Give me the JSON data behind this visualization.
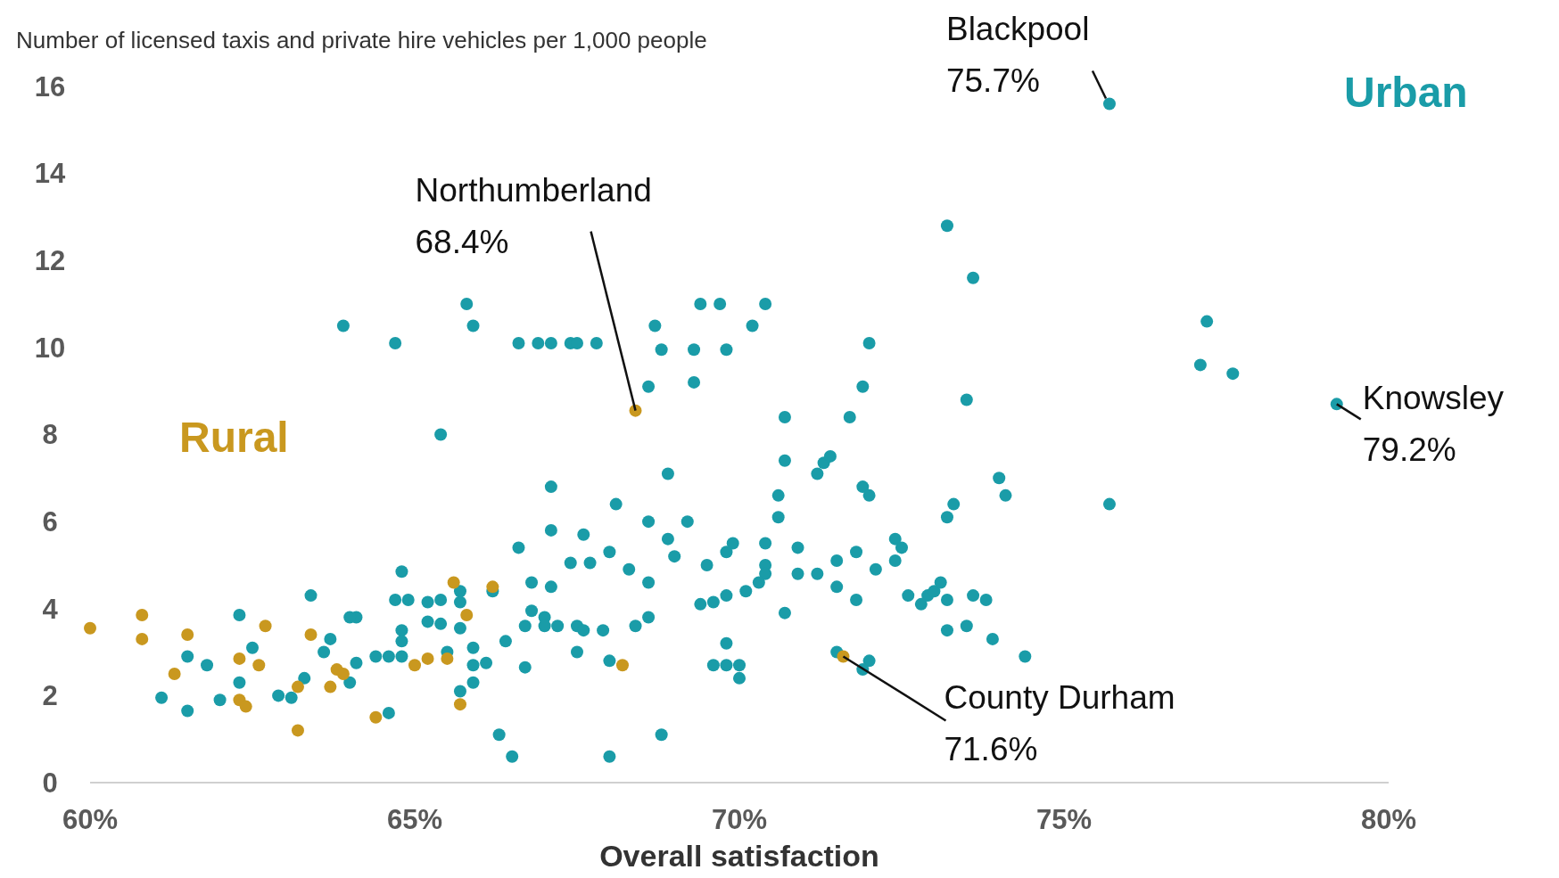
{
  "chart_data": {
    "type": "scatter",
    "ylabel": "Number of licensed taxis and private hire vehicles per 1,000 people",
    "xlabel": "Overall satisfaction",
    "xlim": [
      60,
      80
    ],
    "xticks": [
      {
        "value": 60,
        "label": "60%"
      },
      {
        "value": 65,
        "label": "65%"
      },
      {
        "value": 70,
        "label": "70%"
      },
      {
        "value": 75,
        "label": "75%"
      },
      {
        "value": 80,
        "label": "80%"
      }
    ],
    "ylim": [
      0,
      16
    ],
    "yticks": [
      0,
      2,
      4,
      6,
      8,
      10,
      12,
      14,
      16
    ],
    "grid": false,
    "legend": false,
    "marker": "circle",
    "series": [
      {
        "name": "Urban",
        "color": "#1a9ca8",
        "x": [
          75.7,
          73.2,
          73.6,
          77.2,
          77.1,
          77.6,
          79.2,
          73.5,
          75.7,
          63.9,
          64.7,
          65.8,
          65.9,
          66.6,
          66.9,
          67.1,
          67.4,
          67.5,
          67.8,
          68.8,
          68.7,
          68.6,
          69.3,
          69.4,
          69.7,
          69.8,
          69.3,
          70.2,
          70.4,
          72.0,
          71.9,
          71.7,
          70.7,
          70.7,
          71.2,
          71.3,
          71.4,
          71.9,
          72.0,
          70.6,
          70.6,
          65.4,
          67.1,
          68.9,
          74.0,
          74.1,
          73.2,
          73.3,
          68.1,
          68.6,
          69.2,
          68.9,
          69.0,
          69.5,
          69.9,
          69.8,
          70.4,
          70.4,
          70.4,
          70.3,
          70.9,
          70.9,
          71.2,
          71.5,
          71.8,
          72.1,
          72.4,
          72.5,
          72.4,
          71.5,
          71.8,
          72.6,
          72.9,
          73.0,
          73.1,
          72.8,
          73.2,
          73.6,
          73.8,
          73.2,
          73.5,
          73.9,
          74.4,
          71.5,
          72.0,
          71.9,
          70.7,
          69.6,
          69.4,
          69.8,
          70.1,
          69.8,
          69.6,
          69.8,
          70.0,
          70.0,
          68.8,
          68.0,
          66.3,
          66.5,
          66.6,
          66.8,
          67.1,
          67.1,
          67.6,
          67.4,
          67.7,
          68.0,
          68.3,
          68.6,
          66.8,
          67.0,
          66.7,
          67.0,
          67.2,
          67.5,
          67.6,
          67.9,
          67.5,
          68.0,
          68.4,
          68.6,
          66.7,
          66.4,
          66.1,
          65.2,
          65.4,
          65.7,
          65.7,
          66.2,
          65.4,
          65.7,
          65.2,
          65.9,
          65.5,
          64.8,
          64.7,
          64.9,
          64.8,
          64.8,
          64.8,
          64.6,
          64.4,
          64.1,
          64.0,
          65.9,
          65.9,
          65.7,
          64.6,
          64.1,
          64.0,
          63.4,
          63.7,
          63.6,
          63.1,
          63.3,
          62.9,
          62.5,
          62.3,
          62.3,
          62.0,
          61.8,
          61.5,
          61.5,
          61.1
        ],
        "values": [
          15.6,
          12.8,
          11.6,
          10.6,
          9.6,
          9.4,
          8.7,
          8.8,
          6.4,
          10.5,
          10.1,
          11.0,
          10.5,
          10.1,
          10.1,
          10.1,
          10.1,
          10.1,
          10.1,
          9.95,
          10.5,
          9.1,
          9.95,
          11.0,
          11.0,
          9.95,
          9.2,
          10.5,
          11.0,
          10.1,
          9.1,
          8.4,
          8.4,
          7.4,
          7.1,
          7.35,
          7.5,
          6.8,
          6.6,
          6.6,
          6.1,
          8.0,
          6.8,
          7.1,
          7.0,
          6.6,
          6.1,
          6.4,
          6.4,
          6.0,
          6.0,
          5.6,
          5.2,
          5.0,
          5.5,
          5.3,
          5.5,
          5.0,
          4.8,
          4.6,
          5.4,
          4.8,
          4.8,
          5.1,
          5.3,
          4.9,
          5.6,
          5.4,
          5.1,
          4.5,
          4.2,
          4.3,
          4.3,
          4.4,
          4.6,
          4.1,
          4.2,
          4.3,
          4.2,
          3.5,
          3.6,
          3.3,
          2.9,
          3.0,
          2.8,
          2.6,
          3.9,
          4.15,
          4.1,
          4.3,
          4.4,
          3.2,
          2.7,
          2.7,
          2.7,
          2.4,
          1.1,
          0.6,
          1.1,
          0.6,
          5.4,
          4.6,
          4.5,
          5.8,
          5.7,
          5.05,
          5.05,
          5.3,
          4.9,
          4.6,
          3.95,
          3.8,
          3.6,
          3.6,
          3.6,
          3.6,
          3.5,
          3.5,
          3.0,
          2.8,
          3.6,
          3.8,
          2.65,
          3.25,
          2.75,
          4.15,
          4.2,
          4.4,
          4.15,
          4.4,
          3.65,
          3.55,
          3.7,
          3.1,
          3.0,
          4.85,
          4.2,
          4.2,
          3.5,
          3.25,
          2.9,
          2.9,
          2.9,
          2.75,
          2.3,
          2.7,
          2.3,
          2.1,
          1.6,
          3.8,
          3.8,
          4.3,
          3.3,
          3.0,
          1.95,
          2.4,
          2.0,
          3.1,
          3.85,
          2.3,
          1.9,
          2.7,
          2.9,
          1.65,
          1.95
        ]
      },
      {
        "name": "Rural",
        "color": "#c9981f",
        "x": [
          60.0,
          60.8,
          60.8,
          61.5,
          61.3,
          62.3,
          62.7,
          62.6,
          62.3,
          62.4,
          63.4,
          63.2,
          63.2,
          63.8,
          63.9,
          63.7,
          64.4,
          65.0,
          65.2,
          65.5,
          65.6,
          65.8,
          66.2,
          65.7,
          68.4,
          68.2,
          71.6
        ],
        "values": [
          3.55,
          3.85,
          3.3,
          3.4,
          2.5,
          2.85,
          3.6,
          2.7,
          1.9,
          1.75,
          3.4,
          2.2,
          1.2,
          2.6,
          2.5,
          2.2,
          1.5,
          2.7,
          2.85,
          2.85,
          4.6,
          3.85,
          4.5,
          1.8,
          8.55,
          2.7,
          2.9
        ]
      }
    ],
    "annotations": [
      {
        "text": "Blackpool\n75.7%",
        "x": 75.7,
        "y": 15.6
      },
      {
        "text": "Northumberland\n68.4%",
        "x": 68.4,
        "y": 8.55
      },
      {
        "text": "Knowsley\n79.2%",
        "x": 79.2,
        "y": 8.7
      },
      {
        "text": "County Durham\n71.6%",
        "x": 71.6,
        "y": 2.9
      }
    ]
  }
}
